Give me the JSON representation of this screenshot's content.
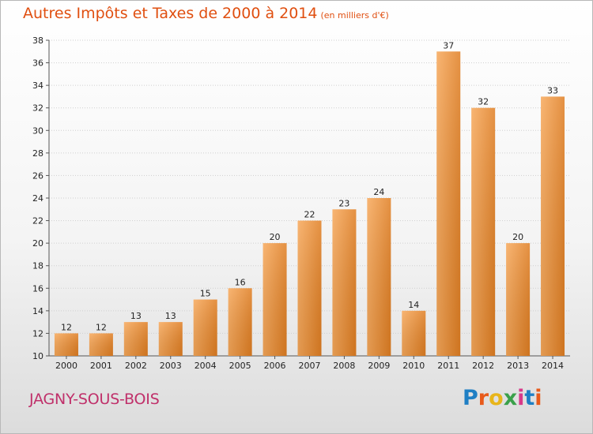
{
  "header": {
    "title": "Autres Impôts et Taxes de 2000 à 2014",
    "unit": "(en milliers d'€)"
  },
  "footer": {
    "city": "JAGNY-SOUS-BOIS",
    "logo": "Proxiti",
    "logo_colors": [
      "#1f7fc4",
      "#e85a1a",
      "#e8b51a",
      "#3aa04a",
      "#d83a8a",
      "#1f7fc4",
      "#e85a1a"
    ]
  },
  "colors": {
    "title": "#e04f10",
    "city": "#c0306a",
    "bar_light": "#f7a85a",
    "bar_dark": "#e07e22",
    "axis_text": "#222222",
    "grid": "#cfcfcf"
  },
  "chart_data": {
    "type": "bar",
    "categories": [
      "2000",
      "2001",
      "2002",
      "2003",
      "2004",
      "2005",
      "2006",
      "2007",
      "2008",
      "2009",
      "2010",
      "2011",
      "2012",
      "2013",
      "2014"
    ],
    "values": [
      12,
      12,
      13,
      13,
      15,
      16,
      20,
      22,
      23,
      24,
      14,
      37,
      32,
      20,
      33
    ],
    "data_labels": [
      "12",
      "12",
      "13",
      "13",
      "15",
      "16",
      "20",
      "22",
      "23",
      "24",
      "14",
      "37",
      "32",
      "20",
      "33"
    ],
    "yticks": [
      "10",
      "12",
      "14",
      "16",
      "18",
      "20",
      "22",
      "24",
      "26",
      "28",
      "30",
      "32",
      "34",
      "36",
      "38"
    ],
    "ylim": [
      10,
      38
    ],
    "grid": true
  }
}
